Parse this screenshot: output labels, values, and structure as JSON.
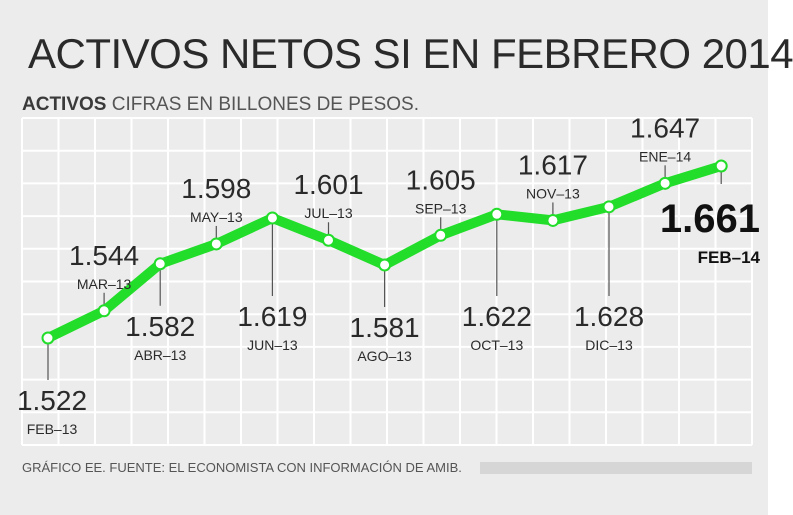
{
  "title": "ACTIVOS NETOS SI EN FEBRERO 2014",
  "subtitle_strong": "ACTIVOS",
  "subtitle_rest": "CIFRAS EN BILLONES DE PESOS.",
  "source": "GRÁFICO EE. FUENTE: EL ECONOMISTA CON INFORMACIÓN DE AMIB.",
  "colors": {
    "line": "#22dd2a",
    "background": "#ececec",
    "grid": "#ffffff",
    "text": "#2a2a2a"
  },
  "chart_data": {
    "type": "line",
    "title": "ACTIVOS NETOS SI EN FEBRERO 2014",
    "subtitle": "ACTIVOS CIFRAS EN BILLONES DE PESOS.",
    "categories": [
      "FEB–13",
      "MAR–13",
      "ABR–13",
      "MAY–13",
      "JUN–13",
      "JUL–13",
      "AGO–13",
      "SEP–13",
      "OCT–13",
      "NOV–13",
      "DIC–13",
      "ENE–14",
      "FEB–14"
    ],
    "value_labels": [
      "1.522",
      "1.544",
      "1.582",
      "1.598",
      "1.619",
      "1.601",
      "1.581",
      "1.605",
      "1.622",
      "1.617",
      "1.628",
      "1.647",
      "1.661"
    ],
    "values": [
      1.522,
      1.544,
      1.582,
      1.598,
      1.619,
      1.601,
      1.581,
      1.605,
      1.622,
      1.617,
      1.628,
      1.647,
      1.661
    ],
    "label_positions": [
      "below",
      "above",
      "below",
      "above",
      "below",
      "above",
      "below",
      "above",
      "below",
      "above",
      "below",
      "above",
      "highlight"
    ],
    "ylim": [
      1.5,
      1.68
    ],
    "grid": true,
    "xlabel": "",
    "ylabel": ""
  }
}
